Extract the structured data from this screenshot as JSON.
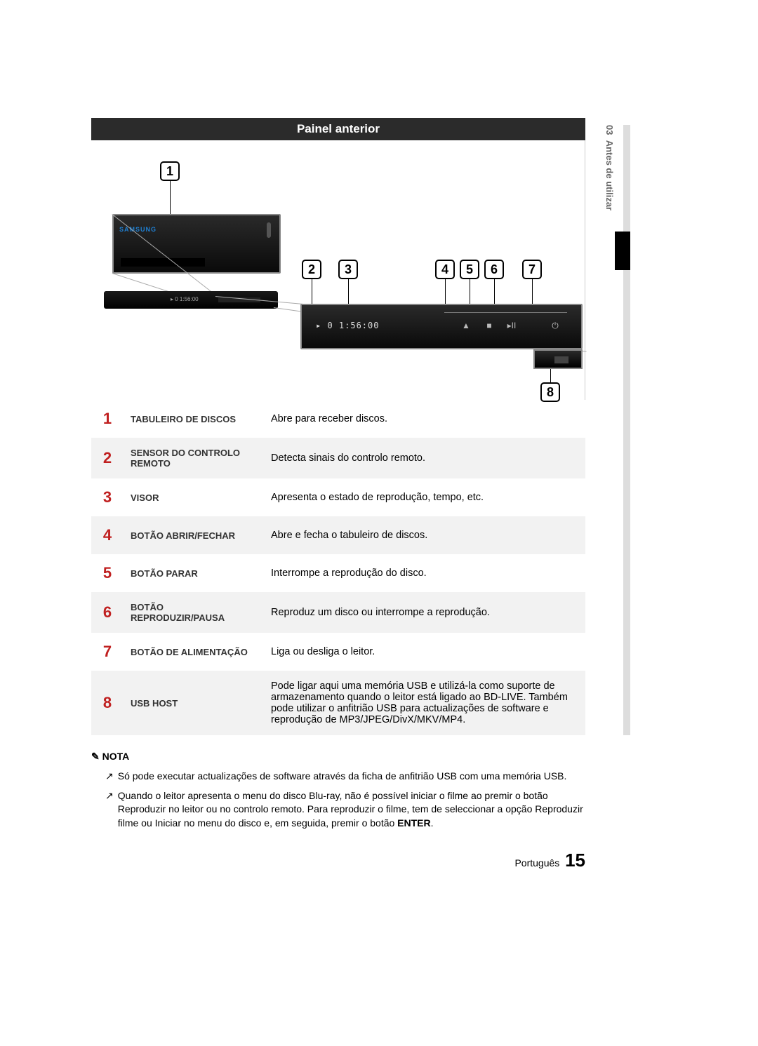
{
  "side_tab": {
    "num": "03",
    "label": "Antes de utilizar"
  },
  "header": {
    "title": "Painel anterior"
  },
  "diagram": {
    "callouts": [
      "1",
      "2",
      "3",
      "4",
      "5",
      "6",
      "7",
      "8"
    ],
    "display_text": "▸ 0 1:56:00",
    "brand": "SAMSUNG",
    "play_small": "▸ 0 1:56:00",
    "icons": {
      "open": "▲",
      "stop": "■",
      "playpause": "▸II",
      "power": "⏻"
    }
  },
  "legend": {
    "rows": [
      {
        "n": "1",
        "label": "TABULEIRO DE DISCOS",
        "desc": "Abre para receber discos.",
        "alt": false
      },
      {
        "n": "2",
        "label": "SENSOR DO CONTROLO REMOTO",
        "desc": "Detecta sinais do controlo remoto.",
        "alt": true
      },
      {
        "n": "3",
        "label": "VISOR",
        "desc": "Apresenta o estado de reprodução, tempo, etc.",
        "alt": false
      },
      {
        "n": "4",
        "label": "BOTÃO ABRIR/FECHAR",
        "desc": "Abre e fecha o tabuleiro de discos.",
        "alt": true
      },
      {
        "n": "5",
        "label": "BOTÃO PARAR",
        "desc": "Interrompe a reprodução do disco.",
        "alt": false
      },
      {
        "n": "6",
        "label": "BOTÃO REPRODUZIR/PAUSA",
        "desc": "Reproduz um disco ou interrompe a reprodução.",
        "alt": true
      },
      {
        "n": "7",
        "label": "BOTÃO DE ALIMENTAÇÃO",
        "desc": "Liga ou desliga o leitor.",
        "alt": false
      },
      {
        "n": "8",
        "label": "USB HOST",
        "desc": "Pode ligar aqui uma memória USB e utilizá-la como suporte de armazenamento quando o leitor está ligado ao BD-LIVE. Também pode utilizar o anfitrião USB para actualizações de software e reprodução de MP3/JPEG/DivX/MKV/MP4.",
        "alt": true
      }
    ]
  },
  "notes": {
    "title": "NOTA",
    "items": [
      "Só pode executar actualizações de software através da ficha de anfitrião USB com uma memória USB.",
      "Quando o leitor apresenta o menu do disco Blu-ray, não é possível iniciar o filme ao premir o botão Reproduzir no leitor ou no controlo remoto. Para reproduzir o filme, tem de seleccionar a opção Reproduzir filme ou Iniciar no menu do disco e, em seguida, premir o botão ENTER."
    ],
    "enter_word": "ENTER"
  },
  "footer": {
    "lang": "Português",
    "page": "15"
  }
}
